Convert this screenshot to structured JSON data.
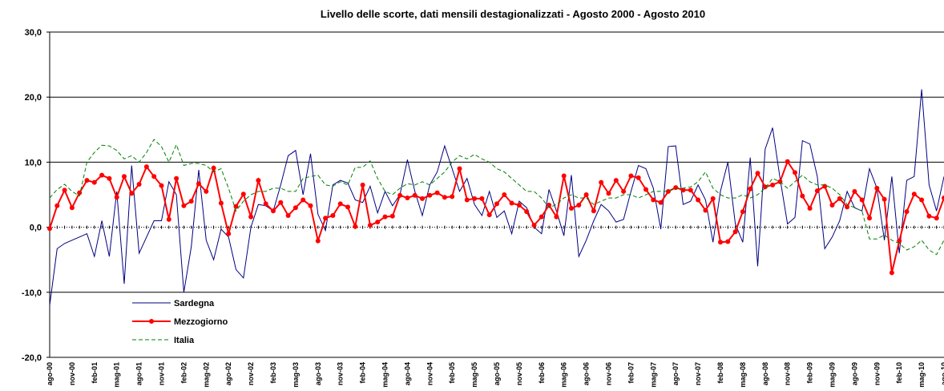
{
  "chart_data": {
    "type": "line",
    "title": "Livello delle scorte, dati mensili destagionalizzati - Agosto 2000 - Agosto 2010",
    "categories": [
      "ago-00",
      null,
      null,
      "nov-00",
      null,
      null,
      "feb-01",
      null,
      null,
      "mag-01",
      null,
      null,
      "ago-01",
      null,
      null,
      "nov-01",
      null,
      null,
      "feb-02",
      null,
      null,
      "mag-02",
      null,
      null,
      "ago-02",
      null,
      null,
      "nov-02",
      null,
      null,
      "feb-03",
      null,
      null,
      "mag-03",
      null,
      null,
      "ago-03",
      null,
      null,
      "nov-03",
      null,
      null,
      "feb-04",
      null,
      null,
      "mag-04",
      null,
      null,
      "ago-04",
      null,
      null,
      "nov-04",
      null,
      null,
      "feb-05",
      null,
      null,
      "mag-05",
      null,
      null,
      "ago-05",
      null,
      null,
      "nov-05",
      null,
      null,
      "feb-06",
      null,
      null,
      "mag-06",
      null,
      null,
      "ago-06",
      null,
      null,
      "nov-06",
      null,
      null,
      "feb-07",
      null,
      null,
      "mag-07",
      null,
      null,
      "ago-07",
      null,
      null,
      "nov-07",
      null,
      null,
      "feb-08",
      null,
      null,
      "mag-08",
      null,
      null,
      "ago-08",
      null,
      null,
      "nov-08",
      null,
      null,
      "feb-09",
      null,
      null,
      "mag-09",
      null,
      null,
      "ago-09",
      null,
      null,
      "nov-09",
      null,
      null,
      "feb-10",
      null,
      null,
      "mag-10",
      null,
      null,
      "ago-10"
    ],
    "series": [
      {
        "name": "Sardegna",
        "color": "#000080",
        "values": [
          -12,
          -3.3,
          -2.5,
          -2,
          -1.5,
          -1,
          -4.5,
          1,
          -4.5,
          5.5,
          -8.7,
          9.5,
          -4,
          -1.5,
          1,
          1,
          7,
          5,
          -10,
          -3,
          8.8,
          -2,
          -5,
          -0.3,
          -1.5,
          -6.5,
          -7.8,
          0,
          3.5,
          3.3,
          2.5,
          6.5,
          11,
          11.8,
          5,
          11.3,
          2,
          -0.5,
          6.5,
          7.2,
          6.8,
          4.2,
          3.8,
          6.3,
          2.2,
          5.5,
          3.3,
          5,
          10.4,
          5.5,
          1.8,
          6.5,
          8.5,
          12.5,
          9,
          5.5,
          7.5,
          3.5,
          1.8,
          5.5,
          1.5,
          2.5,
          -1,
          4,
          3,
          0,
          -1,
          5.8,
          2.5,
          -1.3,
          8,
          -4.5,
          -2,
          1,
          3.5,
          2.5,
          0.8,
          1.2,
          5.5,
          9.5,
          9,
          6,
          -0.3,
          12.4,
          12.5,
          3.5,
          4,
          6.5,
          4.2,
          -2.3,
          5.5,
          10,
          0.5,
          -2.3,
          10.7,
          -6,
          12,
          15.3,
          7.5,
          0.5,
          1.5,
          13.3,
          12.8,
          7.8,
          -3.3,
          -1.5,
          1,
          5.5,
          3,
          2.5,
          9,
          6,
          -2,
          7.8,
          -4,
          7.2,
          7.8,
          21.2,
          6.5,
          2.5,
          7.8
        ]
      },
      {
        "name": "Mezzogiorno",
        "color": "#ff0000",
        "markers": true,
        "values": [
          -0.2,
          3.3,
          5.7,
          3.0,
          5.3,
          7.2,
          6.9,
          8.0,
          7.5,
          4.6,
          7.8,
          5.2,
          6.6,
          9.3,
          7.8,
          6.4,
          1.2,
          7.5,
          3.3,
          4.0,
          6.7,
          5.5,
          9.1,
          3.7,
          -1.0,
          3.2,
          5.1,
          1.6,
          7.2,
          3.6,
          2.5,
          3.8,
          1.8,
          3.0,
          4.2,
          3.3,
          -2.1,
          1.4,
          1.8,
          3.6,
          3.1,
          0.1,
          6.5,
          0.3,
          0.8,
          1.6,
          1.7,
          4.9,
          4.5,
          4.9,
          4.4,
          4.9,
          5.3,
          4.6,
          4.7,
          9.0,
          4.2,
          4.4,
          4.4,
          1.9,
          3.6,
          5.0,
          3.7,
          3.4,
          2.4,
          0.3,
          1.6,
          3.4,
          1.6,
          7.9,
          2.9,
          3.4,
          5.0,
          2.5,
          6.9,
          5.2,
          7.2,
          5.5,
          7.9,
          7.6,
          5.8,
          4.2,
          3.8,
          5.5,
          6.1,
          5.7,
          5.7,
          4.2,
          2.6,
          4.4,
          -2.3,
          -2.2,
          -0.7,
          2.4,
          5.9,
          8.3,
          6.2,
          6.5,
          7.0,
          10.1,
          8.4,
          4.8,
          2.9,
          5.6,
          6.3,
          3.4,
          4.4,
          3.1,
          5.5,
          4.2,
          1.4,
          6.0,
          4.3,
          -7.0,
          -2.1,
          2.4,
          5.1,
          4.2,
          1.7,
          1.4,
          4.5
        ]
      },
      {
        "name": "Italia",
        "color": "#008000",
        "dashed": true,
        "values": [
          4.5,
          5.8,
          6.6,
          5.5,
          4.8,
          10,
          11.5,
          12.6,
          12.5,
          11.8,
          10.5,
          11,
          10,
          11.5,
          13.5,
          12.4,
          10,
          12.7,
          9.5,
          9.8,
          9.8,
          9.5,
          8.5,
          9,
          6,
          2.5,
          4,
          5,
          5.5,
          5.5,
          6,
          6,
          5.5,
          5.5,
          7.5,
          7.8,
          8,
          6.5,
          6.3,
          7,
          6.5,
          9.2,
          9.2,
          10.2,
          7.5,
          5.5,
          5,
          6,
          6.7,
          6.5,
          7,
          6.5,
          7.5,
          8.5,
          10,
          11,
          10.5,
          11.2,
          10.5,
          10,
          9,
          8.5,
          7.5,
          6.5,
          5.5,
          5.5,
          4.5,
          3,
          3.5,
          4.5,
          5,
          4.5,
          4.5,
          3.5,
          4,
          4.5,
          4.5,
          5,
          5,
          4.5,
          5,
          5.5,
          5.5,
          5.5,
          6,
          6,
          6.2,
          7,
          8.5,
          6,
          5,
          4.5,
          4.5,
          5,
          4.5,
          5,
          6,
          7.5,
          7,
          6,
          7,
          8,
          7,
          6.5,
          6.5,
          6,
          5,
          3.5,
          3,
          2.5,
          -1.8,
          -1.8,
          -1.2,
          -2,
          -2.5,
          -3.5,
          -3,
          -2,
          -3.5,
          -4.2,
          -2
        ]
      }
    ],
    "ylim": [
      -20,
      30
    ],
    "yticks": [
      {
        "value": -20,
        "label": "-20,0"
      },
      {
        "value": -10,
        "label": "-10,0"
      },
      {
        "value": 0,
        "label": "0,0"
      },
      {
        "value": 10,
        "label": "10,0"
      },
      {
        "value": 20,
        "label": "20,0"
      },
      {
        "value": 30,
        "label": "30,0"
      }
    ],
    "grid": true,
    "legend": "lower left"
  }
}
